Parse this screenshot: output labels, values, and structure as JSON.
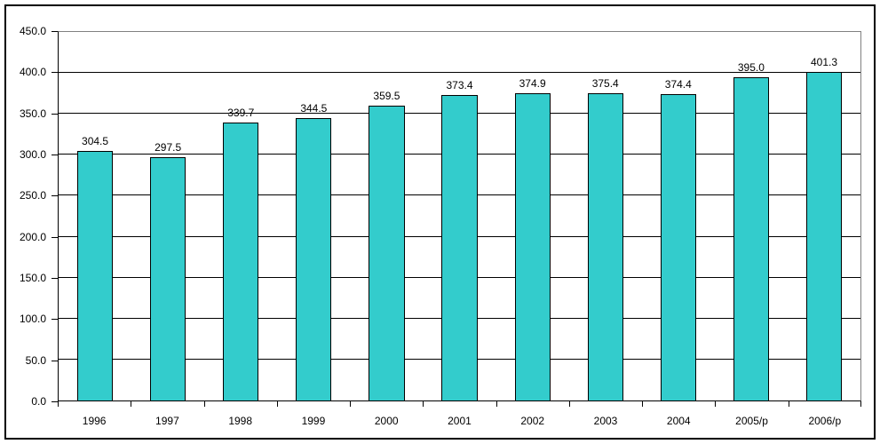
{
  "chart_data": {
    "type": "bar",
    "title": "",
    "categories": [
      "1996",
      "1997",
      "1998",
      "1999",
      "2000",
      "2001",
      "2002",
      "2003",
      "2004",
      "2005/p",
      "2006/p"
    ],
    "values": [
      304.5,
      297.5,
      339.7,
      344.5,
      359.5,
      373.4,
      374.9,
      375.4,
      374.4,
      395.0,
      401.3
    ],
    "value_labels": [
      "304.5",
      "297.5",
      "339.7",
      "344.5",
      "359.5",
      "373.4",
      "374.9",
      "375.4",
      "374.4",
      "395.0",
      "401.3"
    ],
    "xlabel": "",
    "ylabel": "",
    "ylim": [
      0,
      450
    ],
    "ytick_step": 50,
    "yticks": [
      "0.0",
      "50.0",
      "100.0",
      "150.0",
      "200.0",
      "250.0",
      "300.0",
      "350.0",
      "400.0",
      "450.0"
    ],
    "grid": true,
    "legend_position": "none",
    "bar_color": "#33CCCC",
    "bar_border_color": "#000000",
    "gridline_color": "#000000",
    "plot_border_color": "#808080",
    "axis_color": "#000000",
    "background_color": "#FFFFFF"
  }
}
